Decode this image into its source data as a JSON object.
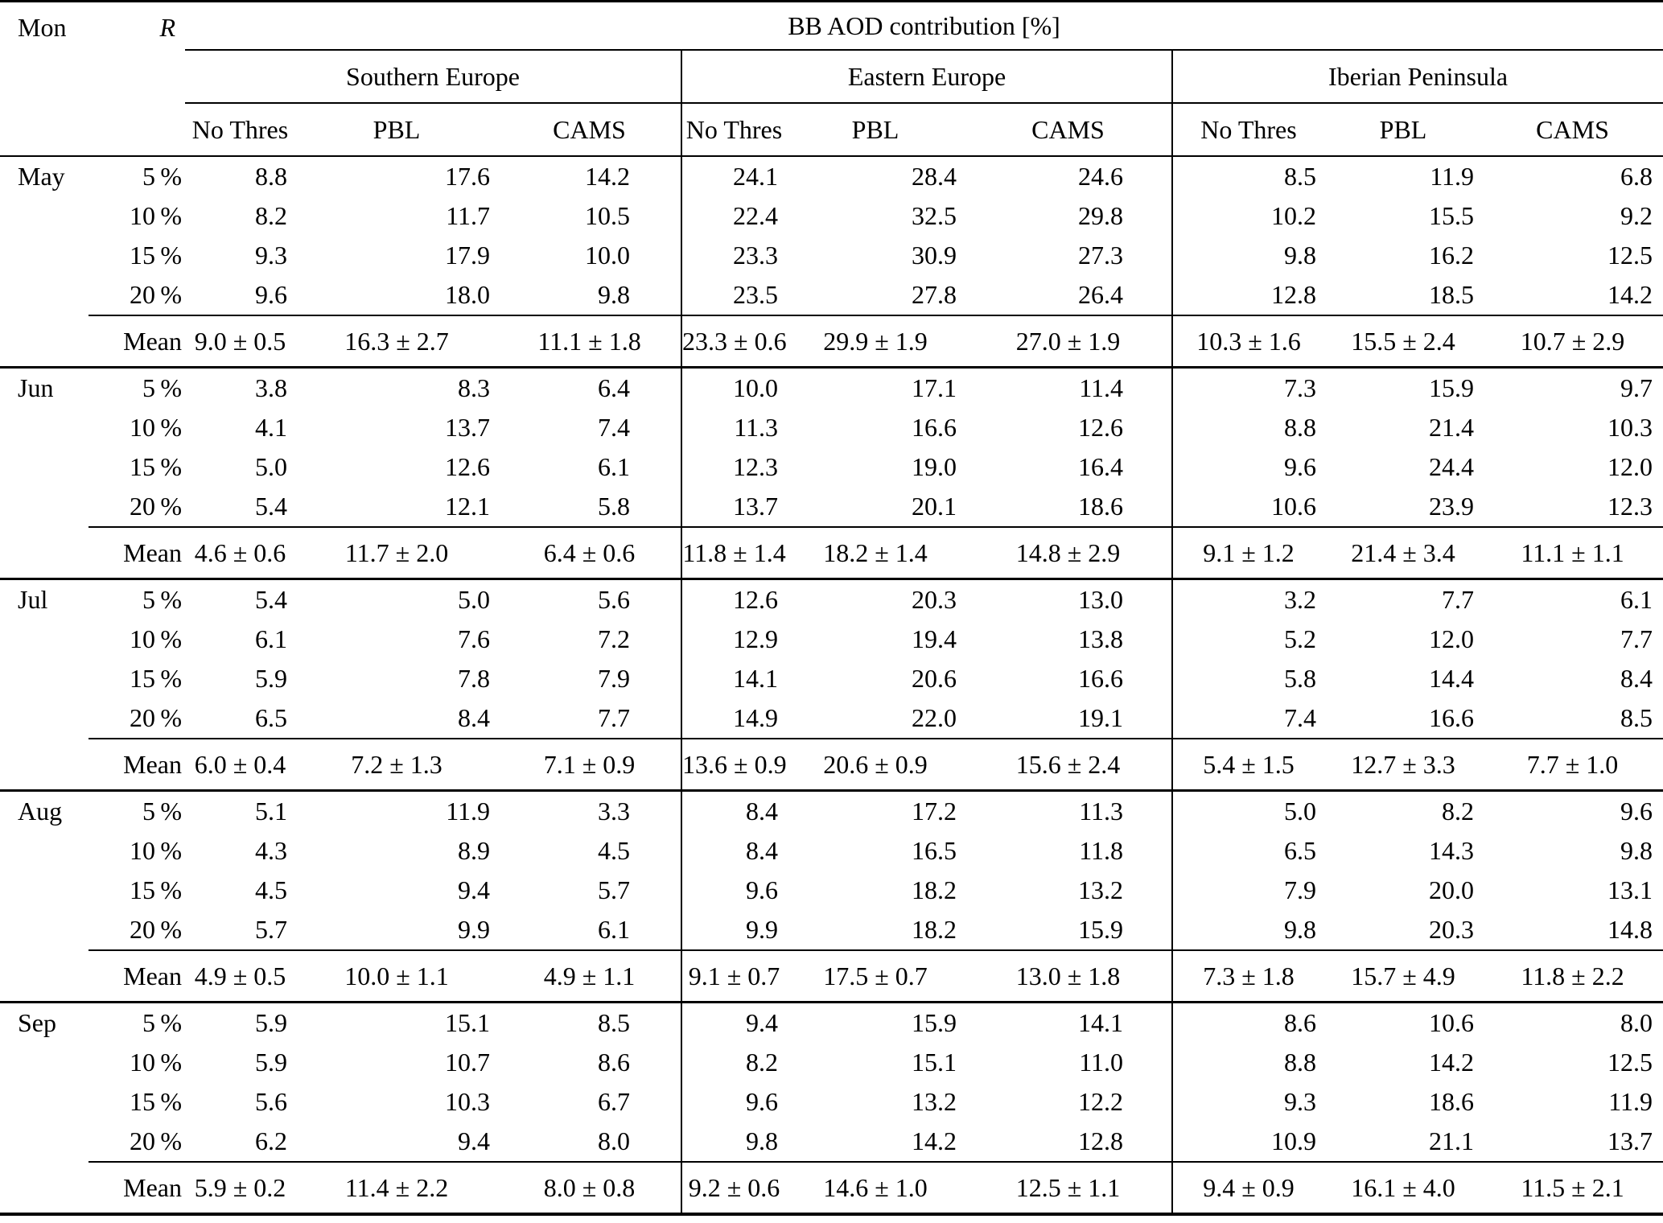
{
  "table": {
    "header": {
      "col_month": "Mon",
      "col_r": "R",
      "title": "BB AOD contribution [%]",
      "regions": [
        "Southern Europe",
        "Eastern Europe",
        "Iberian Peninsula"
      ],
      "methods": [
        "No Thres",
        "PBL",
        "CAMS"
      ]
    },
    "mean_label": "Mean",
    "months": [
      {
        "name": "May",
        "rows": [
          {
            "r": "5 %",
            "values": [
              "8.8",
              "17.6",
              "14.2",
              "24.1",
              "28.4",
              "24.6",
              "8.5",
              "11.9",
              "6.8"
            ]
          },
          {
            "r": "10 %",
            "values": [
              "8.2",
              "11.7",
              "10.5",
              "22.4",
              "32.5",
              "29.8",
              "10.2",
              "15.5",
              "9.2"
            ]
          },
          {
            "r": "15 %",
            "values": [
              "9.3",
              "17.9",
              "10.0",
              "23.3",
              "30.9",
              "27.3",
              "9.8",
              "16.2",
              "12.5"
            ]
          },
          {
            "r": "20 %",
            "values": [
              "9.6",
              "18.0",
              "9.8",
              "23.5",
              "27.8",
              "26.4",
              "12.8",
              "18.5",
              "14.2"
            ]
          }
        ],
        "mean": [
          "9.0 ± 0.5",
          "16.3 ± 2.7",
          "11.1 ± 1.8",
          "23.3 ± 0.6",
          "29.9 ± 1.9",
          "27.0 ± 1.9",
          "10.3 ± 1.6",
          "15.5 ± 2.4",
          "10.7 ± 2.9"
        ]
      },
      {
        "name": "Jun",
        "rows": [
          {
            "r": "5 %",
            "values": [
              "3.8",
              "8.3",
              "6.4",
              "10.0",
              "17.1",
              "11.4",
              "7.3",
              "15.9",
              "9.7"
            ]
          },
          {
            "r": "10 %",
            "values": [
              "4.1",
              "13.7",
              "7.4",
              "11.3",
              "16.6",
              "12.6",
              "8.8",
              "21.4",
              "10.3"
            ]
          },
          {
            "r": "15 %",
            "values": [
              "5.0",
              "12.6",
              "6.1",
              "12.3",
              "19.0",
              "16.4",
              "9.6",
              "24.4",
              "12.0"
            ]
          },
          {
            "r": "20 %",
            "values": [
              "5.4",
              "12.1",
              "5.8",
              "13.7",
              "20.1",
              "18.6",
              "10.6",
              "23.9",
              "12.3"
            ]
          }
        ],
        "mean": [
          "4.6 ± 0.6",
          "11.7 ± 2.0",
          "6.4 ± 0.6",
          "11.8 ± 1.4",
          "18.2 ± 1.4",
          "14.8 ± 2.9",
          "9.1 ± 1.2",
          "21.4 ± 3.4",
          "11.1 ± 1.1"
        ]
      },
      {
        "name": "Jul",
        "rows": [
          {
            "r": "5 %",
            "values": [
              "5.4",
              "5.0",
              "5.6",
              "12.6",
              "20.3",
              "13.0",
              "3.2",
              "7.7",
              "6.1"
            ]
          },
          {
            "r": "10 %",
            "values": [
              "6.1",
              "7.6",
              "7.2",
              "12.9",
              "19.4",
              "13.8",
              "5.2",
              "12.0",
              "7.7"
            ]
          },
          {
            "r": "15 %",
            "values": [
              "5.9",
              "7.8",
              "7.9",
              "14.1",
              "20.6",
              "16.6",
              "5.8",
              "14.4",
              "8.4"
            ]
          },
          {
            "r": "20 %",
            "values": [
              "6.5",
              "8.4",
              "7.7",
              "14.9",
              "22.0",
              "19.1",
              "7.4",
              "16.6",
              "8.5"
            ]
          }
        ],
        "mean": [
          "6.0 ± 0.4",
          "7.2 ± 1.3",
          "7.1 ± 0.9",
          "13.6 ± 0.9",
          "20.6 ± 0.9",
          "15.6 ± 2.4",
          "5.4 ± 1.5",
          "12.7 ± 3.3",
          "7.7 ± 1.0"
        ]
      },
      {
        "name": "Aug",
        "rows": [
          {
            "r": "5 %",
            "values": [
              "5.1",
              "11.9",
              "3.3",
              "8.4",
              "17.2",
              "11.3",
              "5.0",
              "8.2",
              "9.6"
            ]
          },
          {
            "r": "10 %",
            "values": [
              "4.3",
              "8.9",
              "4.5",
              "8.4",
              "16.5",
              "11.8",
              "6.5",
              "14.3",
              "9.8"
            ]
          },
          {
            "r": "15 %",
            "values": [
              "4.5",
              "9.4",
              "5.7",
              "9.6",
              "18.2",
              "13.2",
              "7.9",
              "20.0",
              "13.1"
            ]
          },
          {
            "r": "20 %",
            "values": [
              "5.7",
              "9.9",
              "6.1",
              "9.9",
              "18.2",
              "15.9",
              "9.8",
              "20.3",
              "14.8"
            ]
          }
        ],
        "mean": [
          "4.9 ± 0.5",
          "10.0 ± 1.1",
          "4.9 ± 1.1",
          "9.1 ± 0.7",
          "17.5 ± 0.7",
          "13.0 ± 1.8",
          "7.3 ± 1.8",
          "15.7 ± 4.9",
          "11.8 ± 2.2"
        ]
      },
      {
        "name": "Sep",
        "rows": [
          {
            "r": "5 %",
            "values": [
              "5.9",
              "15.1",
              "8.5",
              "9.4",
              "15.9",
              "14.1",
              "8.6",
              "10.6",
              "8.0"
            ]
          },
          {
            "r": "10 %",
            "values": [
              "5.9",
              "10.7",
              "8.6",
              "8.2",
              "15.1",
              "11.0",
              "8.8",
              "14.2",
              "12.5"
            ]
          },
          {
            "r": "15 %",
            "values": [
              "5.6",
              "10.3",
              "6.7",
              "9.6",
              "13.2",
              "12.2",
              "9.3",
              "18.6",
              "11.9"
            ]
          },
          {
            "r": "20 %",
            "values": [
              "6.2",
              "9.4",
              "8.0",
              "9.8",
              "14.2",
              "12.8",
              "10.9",
              "21.1",
              "13.7"
            ]
          }
        ],
        "mean": [
          "5.9 ± 0.2",
          "11.4 ± 2.2",
          "8.0 ± 0.8",
          "9.2 ± 0.6",
          "14.6 ± 1.0",
          "12.5 ± 1.1",
          "9.4 ± 0.9",
          "16.1 ± 4.0",
          "11.5 ± 2.1"
        ]
      }
    ]
  }
}
